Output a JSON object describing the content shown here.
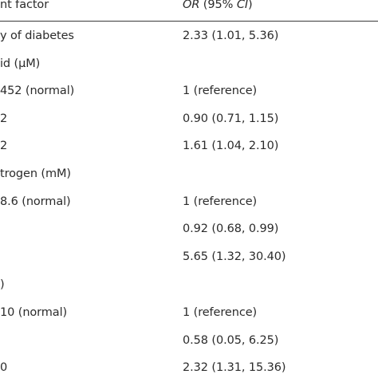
{
  "header": {
    "factor": "nt factor",
    "or_italic": "OR",
    "ci_open": " (95% ",
    "ci_italic": "CI",
    "ci_close": ")"
  },
  "rows": [
    {
      "factor": "y of diabetes",
      "value": "2.33 (1.01, 5.36)"
    },
    {
      "factor": "id (μM)",
      "value": ""
    },
    {
      "factor": "452 (normal)",
      "value": "1 (reference)"
    },
    {
      "factor": "2",
      "value": "0.90 (0.71, 1.15)"
    },
    {
      "factor": "2",
      "value": "1.61 (1.04, 2.10)"
    },
    {
      "factor": "trogen (mM)",
      "value": ""
    },
    {
      "factor": "8.6 (normal)",
      "value": "1 (reference)"
    },
    {
      "factor": "",
      "value": "0.92 (0.68, 0.99)"
    },
    {
      "factor": "",
      "value": "5.65 (1.32, 30.40)"
    },
    {
      "factor": ")",
      "value": ""
    },
    {
      "factor": "10 (normal)",
      "value": "1 (reference)"
    },
    {
      "factor": "",
      "value": "0.58 (0.05, 6.25)"
    },
    {
      "factor": "0",
      "value": "2.32 (1.31, 15.36)"
    }
  ]
}
